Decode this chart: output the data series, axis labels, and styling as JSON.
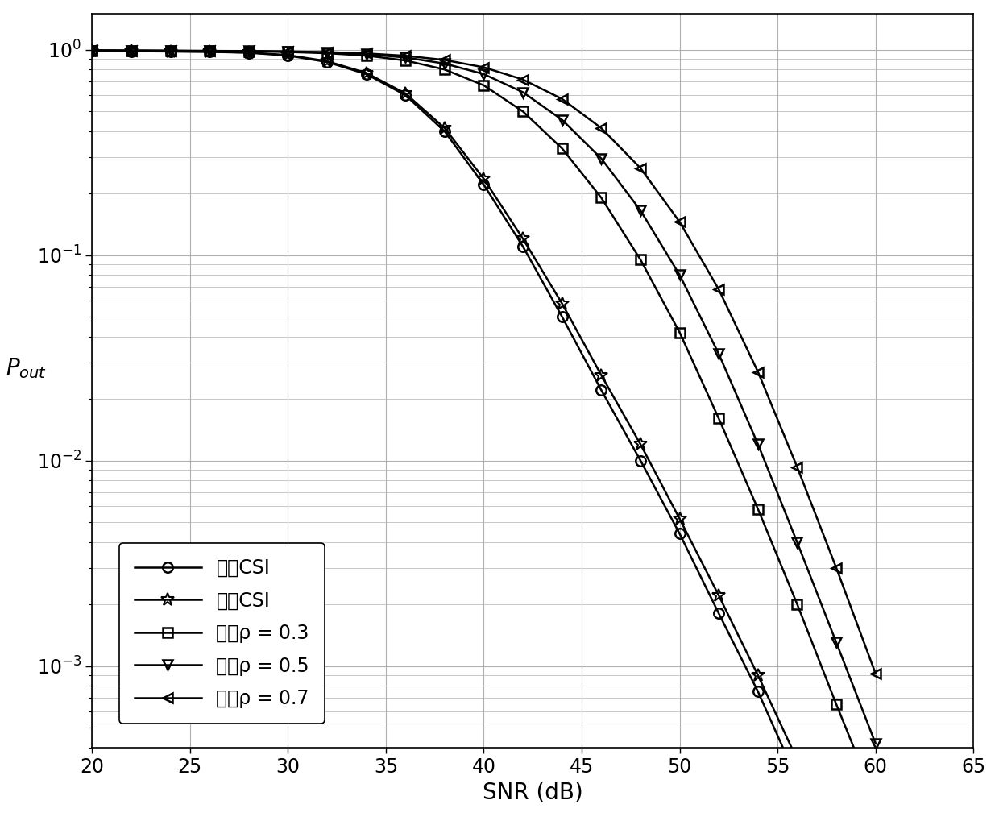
{
  "title": "",
  "xlabel": "SNR (dB)",
  "ylabel": "$P_{out}$",
  "xlim": [
    20,
    65
  ],
  "snr": [
    20,
    22,
    24,
    26,
    28,
    30,
    32,
    34,
    36,
    38,
    40,
    42,
    44,
    46,
    48,
    50,
    52,
    54,
    56,
    58,
    60
  ],
  "complete_csi": [
    0.985,
    0.982,
    0.979,
    0.975,
    0.965,
    0.935,
    0.87,
    0.76,
    0.6,
    0.4,
    0.22,
    0.11,
    0.05,
    0.022,
    0.01,
    0.0044,
    0.0018,
    0.00075,
    0.00028,
    0.0001,
    4.2e-05
  ],
  "partial_csi": [
    0.986,
    0.983,
    0.98,
    0.977,
    0.968,
    0.94,
    0.878,
    0.77,
    0.612,
    0.415,
    0.235,
    0.12,
    0.058,
    0.026,
    0.012,
    0.0052,
    0.0022,
    0.0009,
    0.00035,
    0.00013,
    5.5e-05
  ],
  "fixed_03": [
    0.99,
    0.988,
    0.986,
    0.984,
    0.981,
    0.974,
    0.96,
    0.935,
    0.885,
    0.8,
    0.67,
    0.5,
    0.33,
    0.19,
    0.095,
    0.042,
    0.016,
    0.0058,
    0.002,
    0.00065,
    0.00022
  ],
  "fixed_05": [
    0.991,
    0.989,
    0.987,
    0.985,
    0.983,
    0.978,
    0.968,
    0.95,
    0.915,
    0.855,
    0.76,
    0.62,
    0.455,
    0.295,
    0.165,
    0.08,
    0.033,
    0.012,
    0.004,
    0.0013,
    0.00042
  ],
  "fixed_07": [
    0.992,
    0.99,
    0.988,
    0.986,
    0.984,
    0.98,
    0.972,
    0.958,
    0.933,
    0.89,
    0.82,
    0.715,
    0.575,
    0.415,
    0.265,
    0.145,
    0.068,
    0.027,
    0.0093,
    0.003,
    0.00092
  ],
  "legend_labels": [
    "完整CSI",
    "部分CSI",
    "固定ρ = 0.3",
    "固定ρ = 0.5",
    "固定ρ = 0.7"
  ],
  "line_color": "#000000",
  "bg_color": "#ffffff",
  "grid_color": "#b0b0b0",
  "xticks": [
    20,
    25,
    30,
    35,
    40,
    45,
    50,
    55,
    60,
    65
  ],
  "fontsize_legend": 17,
  "fontsize_label": 20,
  "fontsize_tick": 17
}
